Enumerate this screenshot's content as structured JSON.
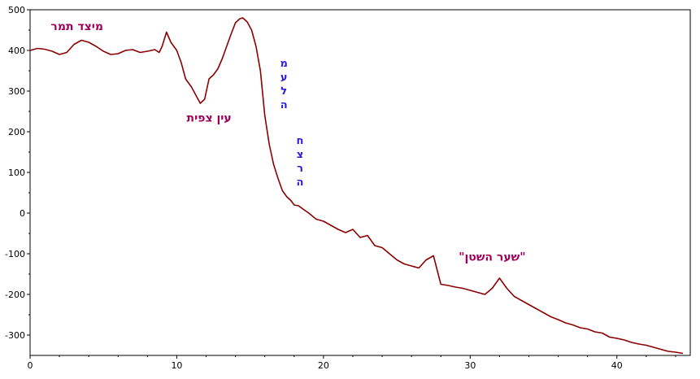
{
  "chart_data": {
    "type": "line",
    "title": "",
    "xlabel": "",
    "ylabel": "",
    "xlim": [
      0,
      45
    ],
    "ylim": [
      -350,
      500
    ],
    "x_ticks": [
      0,
      10,
      20,
      30,
      40
    ],
    "y_ticks": [
      500,
      400,
      300,
      200,
      100,
      0,
      -100,
      -200,
      -300
    ],
    "grid": false,
    "line_color": "#8b0000",
    "series": [
      {
        "x": [
          0,
          0.5,
          1,
          1.5,
          2,
          2.5,
          3,
          3.5,
          4,
          4.5,
          5,
          5.5,
          6,
          6.5,
          7,
          7.5,
          8,
          8.5,
          8.8,
          9,
          9.3,
          9.6,
          10,
          10.3,
          10.6,
          11,
          11.3,
          11.6,
          11.9,
          12.2,
          12.5,
          12.8,
          13.1,
          13.4,
          13.7,
          14,
          14.3,
          14.5,
          14.8,
          15.1,
          15.4,
          15.7,
          16,
          16.3,
          16.6,
          16.9,
          17.2,
          17.5,
          17.8,
          18,
          18.3,
          18.6,
          19,
          19.5,
          20,
          20.5,
          21,
          21.5,
          22,
          22.5,
          23,
          23.5,
          24,
          24.5,
          25,
          25.5,
          26,
          26.5,
          27,
          27.5,
          28,
          28.5,
          29,
          29.5,
          30,
          30.5,
          31,
          31.5,
          32,
          32.5,
          33,
          33.5,
          34,
          34.5,
          35,
          35.5,
          36,
          36.5,
          37,
          37.5,
          38,
          38.5,
          39,
          39.5,
          40,
          40.5,
          41,
          41.5,
          42,
          42.5,
          43,
          43.5,
          44,
          44.5
        ],
        "y": [
          400,
          405,
          403,
          398,
          390,
          395,
          415,
          425,
          420,
          410,
          398,
          390,
          392,
          400,
          402,
          395,
          398,
          402,
          395,
          410,
          445,
          420,
          400,
          370,
          330,
          310,
          290,
          270,
          280,
          330,
          340,
          355,
          380,
          410,
          440,
          468,
          478,
          480,
          470,
          450,
          410,
          350,
          240,
          170,
          120,
          85,
          55,
          40,
          30,
          20,
          18,
          10,
          0,
          -15,
          -20,
          -30,
          -40,
          -48,
          -40,
          -60,
          -55,
          -80,
          -85,
          -100,
          -115,
          -125,
          -130,
          -135,
          -115,
          -105,
          -175,
          -178,
          -182,
          -185,
          -190,
          -195,
          -200,
          -185,
          -160,
          -185,
          -205,
          -215,
          -225,
          -235,
          -245,
          -255,
          -262,
          -270,
          -275,
          -282,
          -285,
          -292,
          -295,
          -305,
          -308,
          -312,
          -318,
          -322,
          -325,
          -330,
          -335,
          -340,
          -342,
          -345
        ]
      }
    ],
    "annotations": [
      {
        "text": "מיצד תמר",
        "x": 3.2,
        "y": 450,
        "color": "#a0005a"
      },
      {
        "text": "עין צפית",
        "x": 12.2,
        "y": 225,
        "color": "#a0005a"
      },
      {
        "text": "\"שער השטן\"",
        "x": 31.5,
        "y": -117,
        "color": "#a0005a"
      },
      {
        "text": "מעלה",
        "x": 17.3,
        "y": 360,
        "color": "#2a1ad8",
        "vertical": true
      },
      {
        "text": "חצרה",
        "x": 18.4,
        "y": 170,
        "color": "#2a1ad8",
        "vertical": true
      }
    ]
  }
}
